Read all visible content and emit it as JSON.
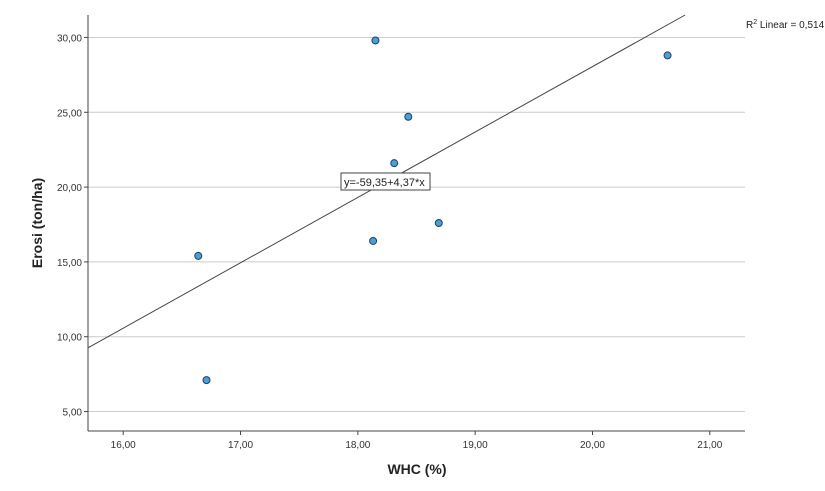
{
  "chart_data": {
    "type": "scatter",
    "xlabel": "WHC (%)",
    "ylabel": "Erosi (ton/ha)",
    "xlim": [
      15.7,
      21.3
    ],
    "ylim": [
      3.7,
      31.5
    ],
    "x_ticks": [
      "16,00",
      "17,00",
      "18,00",
      "19,00",
      "20,00",
      "21,00"
    ],
    "x_tick_values": [
      16,
      17,
      18,
      19,
      20,
      21
    ],
    "y_ticks": [
      "5,00",
      "10,00",
      "15,00",
      "20,00",
      "25,00",
      "30,00"
    ],
    "y_tick_values": [
      5,
      10,
      15,
      20,
      25,
      30
    ],
    "grid": "horizontal",
    "series": [
      {
        "points": [
          {
            "x": 16.64,
            "y": 15.4
          },
          {
            "x": 16.71,
            "y": 7.1
          },
          {
            "x": 18.13,
            "y": 16.4
          },
          {
            "x": 18.15,
            "y": 29.8
          },
          {
            "x": 18.31,
            "y": 21.6
          },
          {
            "x": 18.43,
            "y": 24.7
          },
          {
            "x": 18.69,
            "y": 17.6
          },
          {
            "x": 20.64,
            "y": 28.8
          }
        ]
      }
    ],
    "fit_line": {
      "intercept": -59.35,
      "slope": 4.37
    },
    "fit_equation_label": "y=-59,35+4,37*x",
    "r2_prefix": "R",
    "r2_sup": "2",
    "r2_text": " Linear = 0,514",
    "colors": {
      "point_fill": "#4a9fd5",
      "point_stroke": "#1f3f6e",
      "line": "#444444",
      "grid": "#cccccc",
      "axis": "#444444"
    }
  }
}
